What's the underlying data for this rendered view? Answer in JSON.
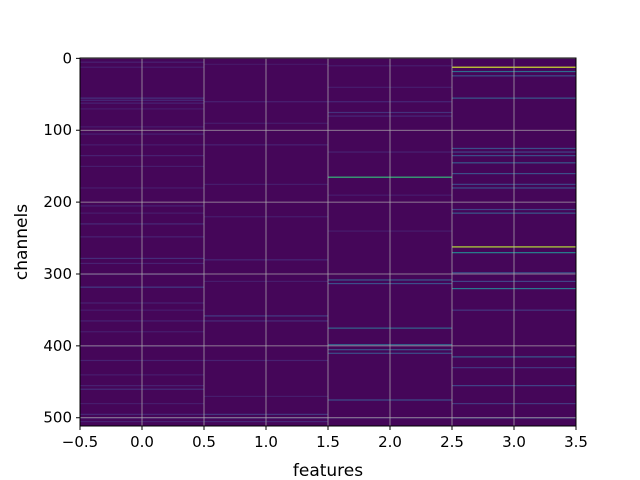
{
  "chart_data": {
    "type": "heatmap",
    "title": "",
    "xlabel": "features",
    "ylabel": "channels",
    "xlim": [
      -0.5,
      3.5
    ],
    "ylim": [
      511.5,
      -0.5
    ],
    "n_rows": 512,
    "x_ticks": [
      -0.5,
      0.0,
      0.5,
      1.0,
      1.5,
      2.0,
      2.5,
      3.0,
      3.5
    ],
    "x_tick_labels": [
      "−0.5",
      "0.0",
      "0.5",
      "1.0",
      "1.5",
      "2.0",
      "2.5",
      "3.0",
      "3.5"
    ],
    "y_ticks": [
      0,
      100,
      200,
      300,
      400,
      500
    ],
    "y_tick_labels": [
      "0",
      "100",
      "200",
      "300",
      "400",
      "500"
    ],
    "grid": true,
    "colormap": "viridis",
    "background_value": 0.02,
    "columns": [
      {
        "feature": 0,
        "highlights": [
          [
            5,
            0.12
          ],
          [
            12,
            0.1
          ],
          [
            55,
            0.18
          ],
          [
            58,
            0.14
          ],
          [
            62,
            0.12
          ],
          [
            70,
            0.1
          ],
          [
            95,
            0.1
          ],
          [
            105,
            0.12
          ],
          [
            120,
            0.1
          ],
          [
            135,
            0.12
          ],
          [
            150,
            0.1
          ],
          [
            180,
            0.1
          ],
          [
            205,
            0.12
          ],
          [
            215,
            0.1
          ],
          [
            230,
            0.15
          ],
          [
            248,
            0.12
          ],
          [
            278,
            0.16
          ],
          [
            285,
            0.12
          ],
          [
            300,
            0.1
          ],
          [
            318,
            0.22
          ],
          [
            340,
            0.12
          ],
          [
            350,
            0.1
          ],
          [
            365,
            0.12
          ],
          [
            380,
            0.1
          ],
          [
            400,
            0.1
          ],
          [
            420,
            0.12
          ],
          [
            440,
            0.1
          ],
          [
            455,
            0.12
          ],
          [
            460,
            0.16
          ],
          [
            480,
            0.1
          ],
          [
            495,
            0.14
          ],
          [
            500,
            0.14
          ],
          [
            505,
            0.12
          ]
        ]
      },
      {
        "feature": 1,
        "highlights": [
          [
            8,
            0.08
          ],
          [
            60,
            0.12
          ],
          [
            90,
            0.1
          ],
          [
            120,
            0.12
          ],
          [
            175,
            0.1
          ],
          [
            220,
            0.1
          ],
          [
            280,
            0.14
          ],
          [
            310,
            0.1
          ],
          [
            358,
            0.22
          ],
          [
            365,
            0.16
          ],
          [
            420,
            0.12
          ],
          [
            470,
            0.1
          ],
          [
            495,
            0.2
          ],
          [
            500,
            0.18
          ],
          [
            505,
            0.14
          ]
        ]
      },
      {
        "feature": 2,
        "highlights": [
          [
            10,
            0.1
          ],
          [
            40,
            0.1
          ],
          [
            60,
            0.14
          ],
          [
            75,
            0.18
          ],
          [
            80,
            0.14
          ],
          [
            130,
            0.12
          ],
          [
            165,
            0.75
          ],
          [
            190,
            0.1
          ],
          [
            240,
            0.1
          ],
          [
            308,
            0.35
          ],
          [
            313,
            0.3
          ],
          [
            375,
            0.4
          ],
          [
            398,
            0.4
          ],
          [
            405,
            0.32
          ],
          [
            410,
            0.3
          ],
          [
            475,
            0.3
          ],
          [
            500,
            0.14
          ]
        ]
      },
      {
        "feature": 3,
        "highlights": [
          [
            12,
            0.95
          ],
          [
            18,
            0.45
          ],
          [
            24,
            0.3
          ],
          [
            55,
            0.35
          ],
          [
            125,
            0.3
          ],
          [
            130,
            0.25
          ],
          [
            135,
            0.3
          ],
          [
            145,
            0.35
          ],
          [
            160,
            0.3
          ],
          [
            175,
            0.25
          ],
          [
            180,
            0.3
          ],
          [
            210,
            0.25
          ],
          [
            215,
            0.35
          ],
          [
            262,
            0.92
          ],
          [
            270,
            0.55
          ],
          [
            298,
            0.3
          ],
          [
            310,
            0.25
          ],
          [
            320,
            0.5
          ],
          [
            350,
            0.2
          ],
          [
            415,
            0.35
          ],
          [
            430,
            0.2
          ],
          [
            455,
            0.25
          ],
          [
            480,
            0.2
          ],
          [
            500,
            0.25
          ]
        ]
      }
    ]
  }
}
